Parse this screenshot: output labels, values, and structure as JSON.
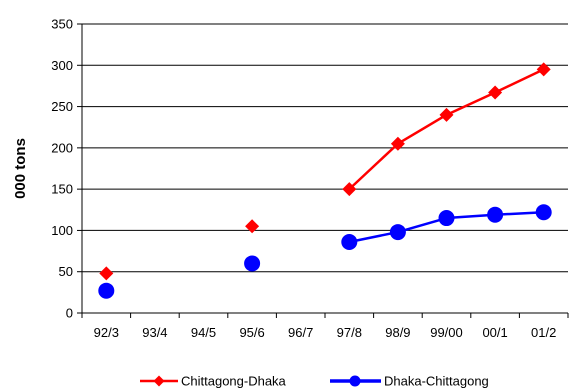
{
  "chart_data": {
    "type": "line",
    "title": "",
    "xlabel": "",
    "ylabel": "000 tons",
    "categories": [
      "92/3",
      "93/4",
      "94/5",
      "95/6",
      "96/7",
      "97/8",
      "98/9",
      "99/00",
      "00/1",
      "01/2"
    ],
    "ylim": [
      0,
      350
    ],
    "yticks": [
      0,
      50,
      100,
      150,
      200,
      250,
      300,
      350
    ],
    "grid": "horizontal",
    "legend_position": "bottom",
    "series": [
      {
        "name": "Chittagong-Dhaka",
        "color": "#FF0000",
        "marker": "diamond",
        "values": [
          48,
          null,
          null,
          105,
          null,
          150,
          205,
          240,
          267,
          295
        ]
      },
      {
        "name": "Dhaka-Chittagong",
        "color": "#0000FF",
        "marker": "circle",
        "values": [
          27,
          null,
          null,
          60,
          null,
          86,
          98,
          115,
          119,
          122
        ]
      }
    ]
  }
}
